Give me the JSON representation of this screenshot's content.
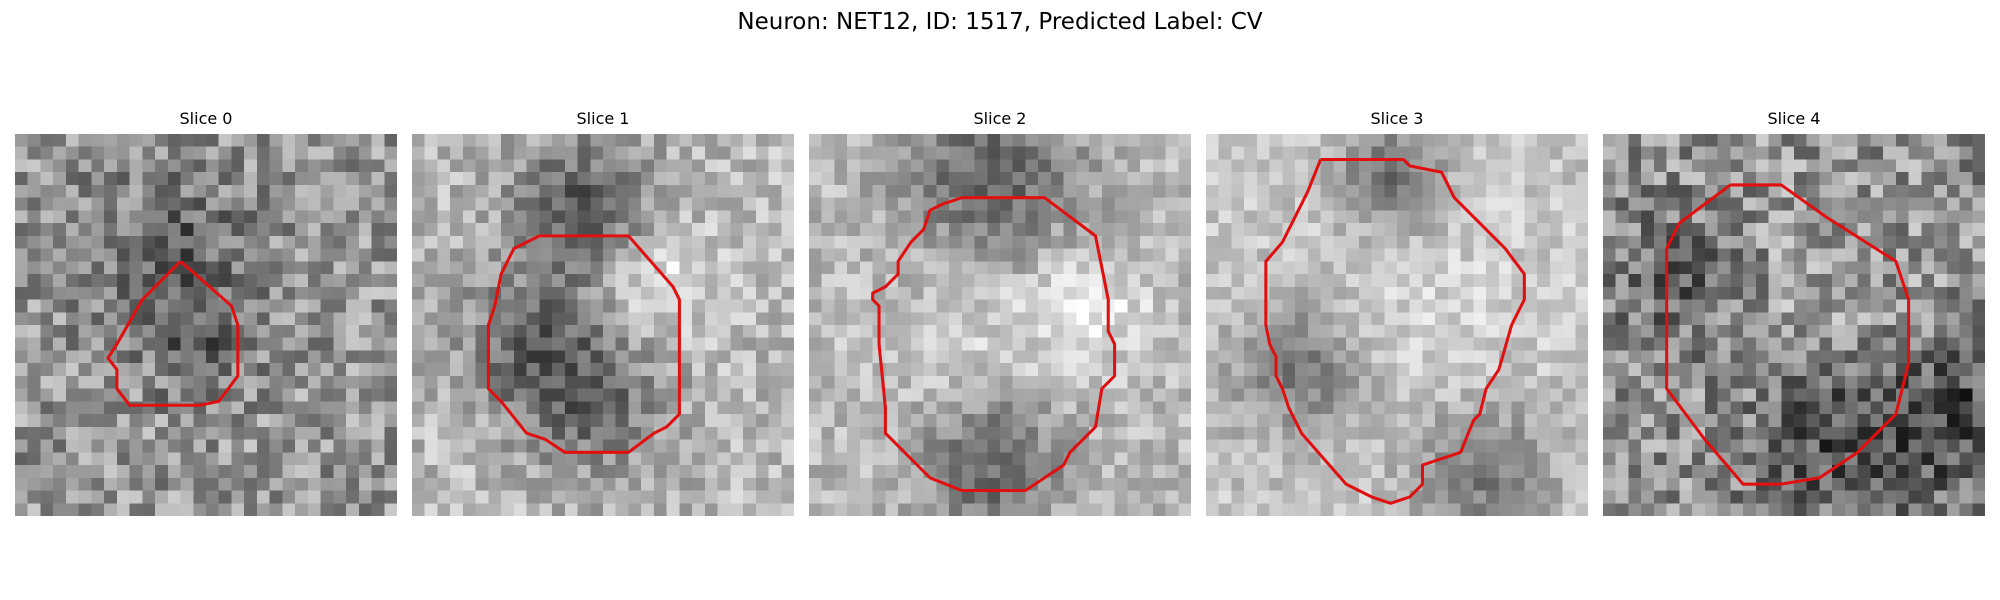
{
  "figure": {
    "title": "Neuron: NET12, ID: 1517, Predicted Label: CV",
    "contour_color": "#e01010"
  },
  "panels": [
    {
      "title": "Slice 0"
    },
    {
      "title": "Slice 1"
    },
    {
      "title": "Slice 2"
    },
    {
      "title": "Slice 3"
    },
    {
      "title": "Slice 4"
    }
  ]
}
